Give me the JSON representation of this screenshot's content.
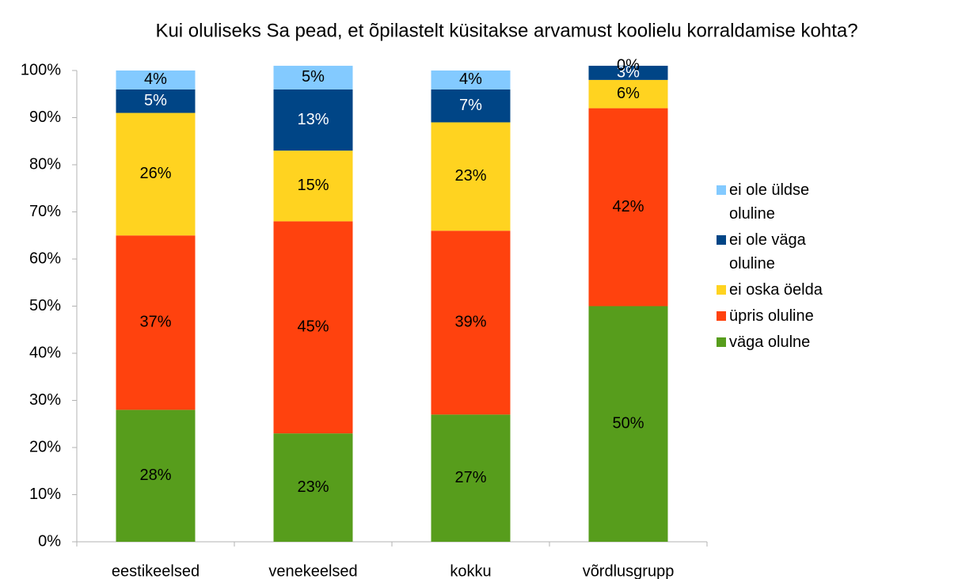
{
  "chart_data": {
    "type": "stacked-bar",
    "title": "Kui oluliseks Sa pead, et õpilastelt küsitakse arvamust koolielu korraldamise kohta?",
    "categories": [
      "eestikeelsed",
      "venekeelsed",
      "kokku",
      "võrdlusgrupp"
    ],
    "series": [
      {
        "name": "väga olulne",
        "color": "#579d1c",
        "values": [
          28,
          23,
          27,
          50
        ],
        "value_labels": [
          "28%",
          "23%",
          "27%",
          "50%"
        ]
      },
      {
        "name": "üpris oluline",
        "color": "#ff420e",
        "values": [
          37,
          45,
          39,
          42
        ],
        "value_labels": [
          "37%",
          "45%",
          "39%",
          "42%"
        ]
      },
      {
        "name": "ei oska öelda",
        "color": "#ffd320",
        "values": [
          26,
          15,
          23,
          6
        ],
        "value_labels": [
          "26%",
          "15%",
          "23%",
          "6%"
        ]
      },
      {
        "name": "ei ole väga oluline",
        "color": "#004586",
        "values": [
          5,
          13,
          7,
          3
        ],
        "value_labels": [
          "5%",
          "13%",
          "7%",
          "3%"
        ]
      },
      {
        "name": "ei ole üldse oluline",
        "color": "#83caff",
        "values": [
          4,
          5,
          4,
          0
        ],
        "value_labels": [
          "4%",
          "5%",
          "4%",
          "0%"
        ]
      }
    ],
    "ylim": [
      0,
      100
    ],
    "yticks": [
      {
        "value": 0,
        "label": "0%"
      },
      {
        "value": 10,
        "label": "10%"
      },
      {
        "value": 20,
        "label": "20%"
      },
      {
        "value": 30,
        "label": "30%"
      },
      {
        "value": 40,
        "label": "40%"
      },
      {
        "value": 50,
        "label": "50%"
      },
      {
        "value": 60,
        "label": "60%"
      },
      {
        "value": 70,
        "label": "70%"
      },
      {
        "value": 80,
        "label": "80%"
      },
      {
        "value": 90,
        "label": "90%"
      },
      {
        "value": 100,
        "label": "100%"
      }
    ],
    "legend": "right"
  }
}
